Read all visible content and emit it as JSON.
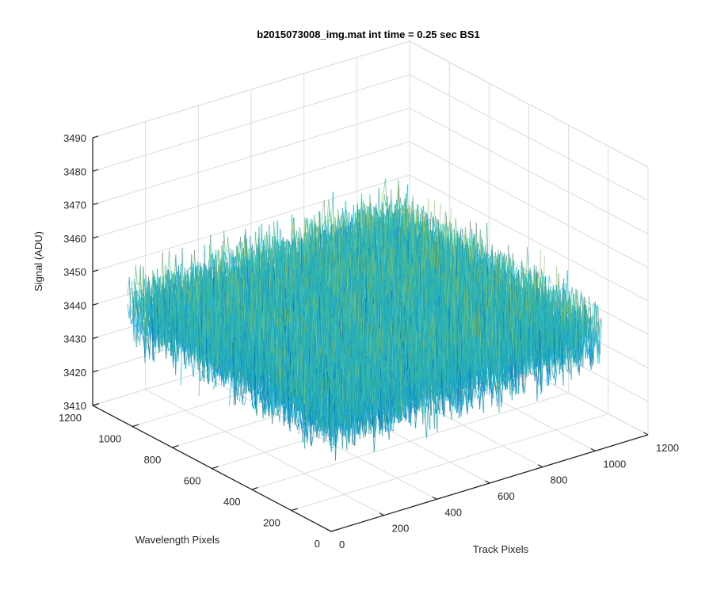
{
  "chart_data": {
    "type": "surface",
    "title": "b2015073008_img.mat int time = 0.25 sec   BS1",
    "xlabel": "Track Pixels",
    "ylabel": "Wavelength Pixels",
    "zlabel": "Signal (ADU)",
    "xlim": [
      0,
      1200
    ],
    "ylim": [
      0,
      1200
    ],
    "zlim": [
      3410,
      3490
    ],
    "x_ticks": [
      "0",
      "200",
      "400",
      "600",
      "800",
      "1000",
      "1200"
    ],
    "y_ticks": [
      "0",
      "200",
      "400",
      "600",
      "800",
      "1000",
      "1200"
    ],
    "z_ticks": [
      "3410",
      "3420",
      "3430",
      "3440",
      "3450",
      "3460",
      "3470",
      "3480",
      "3490"
    ],
    "surface_extent": {
      "x": [
        0,
        1024
      ],
      "y": [
        0,
        1024
      ]
    },
    "signal_mean": 3443,
    "signal_spread": [
      3425,
      3475
    ],
    "colormap": [
      "#0072bd",
      "#16a3c6",
      "#3bb8a8",
      "#8cc66a",
      "#e0d040"
    ],
    "grid": true
  }
}
